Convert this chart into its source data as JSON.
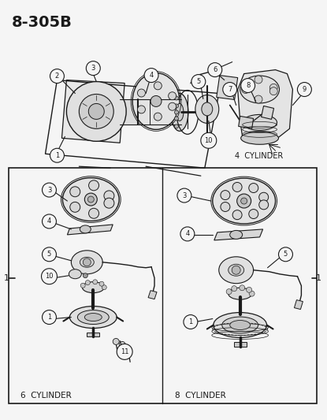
{
  "title": "8-305B",
  "bg": "#f5f5f5",
  "lc": "#1a1a1a",
  "tc": "#1a1a1a",
  "four_cyl_label": "4  CYLINDER",
  "six_cyl_label": "6  CYLINDER",
  "eight_cyl_label": "8  CYLINDER",
  "left_tick": "1",
  "right_tick": "1",
  "figsize": [
    4.15,
    5.33
  ],
  "dpi": 100
}
